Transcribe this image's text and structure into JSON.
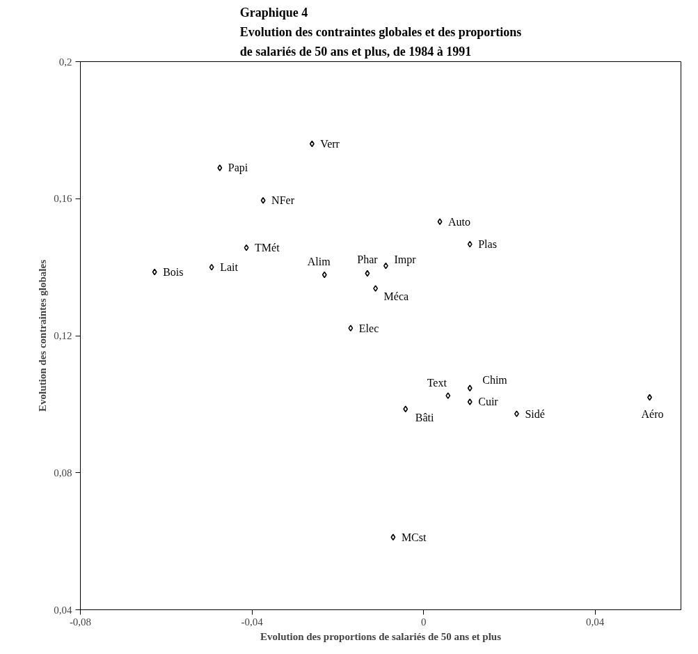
{
  "chart_data": {
    "type": "scatter",
    "title": "Graphique 4\nEvolution des contraintes globales et des proportions\nde salariés de 50 ans et plus, de 1984 à 1991",
    "xlabel": "Evolution des proportions de salariés de 50 ans et plus",
    "ylabel": "Evolution des contraintes globales",
    "xlim": [
      -0.08,
      0.06
    ],
    "ylim": [
      0.04,
      0.2
    ],
    "xticks": [
      {
        "value": -0.08,
        "label": "-0,08"
      },
      {
        "value": -0.04,
        "label": "-0,04"
      },
      0,
      {
        "value": 0.04,
        "label": "0,04"
      }
    ],
    "yticks": [
      {
        "value": 0.04,
        "label": "0,04"
      },
      {
        "value": 0.08,
        "label": "0,08"
      },
      {
        "value": 0.12,
        "label": "0,12"
      },
      {
        "value": 0.16,
        "label": "0,16"
      },
      {
        "value": 0.2,
        "label": "0,2"
      }
    ],
    "marker": "diamond",
    "grid": false,
    "legend": false,
    "series": [
      {
        "name": "Verr",
        "color": "#000000",
        "x": [
          -0.026
        ],
        "values": [
          0.176
        ]
      },
      {
        "name": "Papi",
        "color": "#000000",
        "x": [
          -0.0475
        ],
        "values": [
          0.169
        ]
      },
      {
        "name": "NFer",
        "color": "#000000",
        "x": [
          -0.0374
        ],
        "values": [
          0.1595
        ]
      },
      {
        "name": "Auto",
        "color": "#000000",
        "x": [
          0.0038
        ],
        "values": [
          0.1533
        ]
      },
      {
        "name": "Plas",
        "color": "#000000",
        "x": [
          0.0108
        ],
        "values": [
          0.1467
        ]
      },
      {
        "name": "TMét",
        "color": "#000000",
        "x": [
          -0.0413
        ],
        "values": [
          0.1457
        ]
      },
      {
        "name": "Bois",
        "color": "#000000",
        "x": [
          -0.0627
        ],
        "values": [
          0.1386
        ]
      },
      {
        "name": "Lait",
        "color": "#000000",
        "x": [
          -0.0494
        ],
        "values": [
          0.14
        ]
      },
      {
        "name": "Alim",
        "color": "#000000",
        "x": [
          -0.0231
        ],
        "values": [
          0.1378
        ]
      },
      {
        "name": "Phar",
        "color": "#000000",
        "x": [
          -0.0131
        ],
        "values": [
          0.1382
        ]
      },
      {
        "name": "Impr",
        "color": "#000000",
        "x": [
          -0.0088
        ],
        "values": [
          0.1404
        ]
      },
      {
        "name": "Méca",
        "color": "#000000",
        "x": [
          -0.0112
        ],
        "values": [
          0.1338
        ]
      },
      {
        "name": "Elec",
        "color": "#000000",
        "x": [
          -0.017
        ],
        "values": [
          0.1222
        ]
      },
      {
        "name": "Chim",
        "color": "#000000",
        "x": [
          0.0108
        ],
        "values": [
          0.1047
        ]
      },
      {
        "name": "Text",
        "color": "#000000",
        "x": [
          0.0057
        ],
        "values": [
          0.1025
        ]
      },
      {
        "name": "Cuir",
        "color": "#000000",
        "x": [
          0.0108
        ],
        "values": [
          0.1007
        ]
      },
      {
        "name": "Bâti",
        "color": "#000000",
        "x": [
          -0.0042
        ],
        "values": [
          0.0986
        ]
      },
      {
        "name": "Sidé",
        "color": "#000000",
        "x": [
          0.0217
        ],
        "values": [
          0.0972
        ]
      },
      {
        "name": "Aéro",
        "color": "#000000",
        "x": [
          0.0527
        ],
        "values": [
          0.102
        ]
      },
      {
        "name": "MCst",
        "color": "#000000",
        "x": [
          -0.0071
        ],
        "values": [
          0.0612
        ]
      }
    ]
  }
}
